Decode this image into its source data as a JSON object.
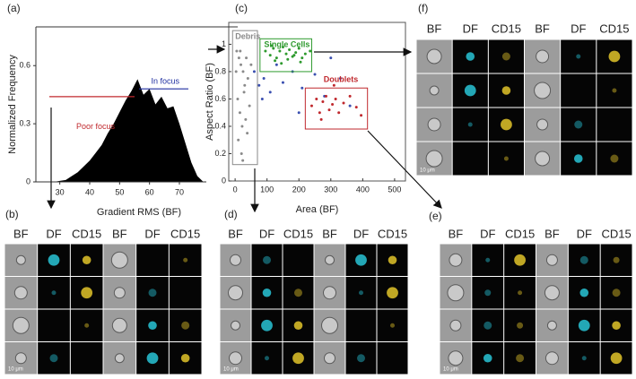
{
  "figure": {
    "labels": [
      "(a)",
      "(b)",
      "(c)",
      "(d)",
      "(e)",
      "(f)"
    ]
  },
  "chart_data": [
    {
      "type": "area",
      "xlabel": "Gradient RMS (BF)",
      "ylabel": "Normalized Frequency",
      "color": "#000000",
      "x": [
        24,
        26,
        28,
        30,
        32,
        34,
        36,
        38,
        40,
        42,
        44,
        46,
        48,
        50,
        52,
        54,
        56,
        58,
        60,
        62,
        64,
        66,
        68,
        70,
        72,
        74,
        76,
        78
      ],
      "values": [
        0,
        0,
        0,
        0.005,
        0.01,
        0.03,
        0.05,
        0.08,
        0.11,
        0.15,
        0.19,
        0.25,
        0.3,
        0.36,
        0.42,
        0.47,
        0.53,
        0.45,
        0.48,
        0.4,
        0.44,
        0.38,
        0.39,
        0.3,
        0.2,
        0.1,
        0.03,
        0
      ],
      "xlim": [
        22,
        79
      ],
      "ylim": [
        0,
        0.8
      ],
      "xticks": [
        30,
        40,
        50,
        60,
        70
      ],
      "yticks": [
        0,
        0.3,
        0.6
      ],
      "annotations": [
        {
          "text": "Poor focus",
          "color": "#c0282d",
          "y": 0.44,
          "x": [
            26.5,
            55
          ]
        },
        {
          "text": "In focus",
          "color": "#1f2fa0",
          "y": 0.48,
          "x": [
            56.5,
            73
          ]
        }
      ]
    },
    {
      "type": "scatter",
      "xlabel": "Area (BF)",
      "ylabel": "Aspect Ratio (BF)",
      "xlim": [
        -20,
        534
      ],
      "ylim": [
        0,
        1.16
      ],
      "xticks": [
        0,
        100,
        200,
        300,
        400,
        500
      ],
      "yticks": [
        0,
        0.2,
        0.4,
        0.6,
        0.8,
        1
      ],
      "series": [
        {
          "color": "#8a8a8a",
          "x": [
            5,
            12,
            18,
            25,
            30,
            8,
            15,
            22,
            35,
            40,
            10,
            20,
            28,
            45,
            3,
            16,
            33,
            50,
            24,
            38
          ],
          "values": [
            0.95,
            0.9,
            0.85,
            0.8,
            0.7,
            0.6,
            0.5,
            0.4,
            0.9,
            0.75,
            0.3,
            0.2,
            0.65,
            0.55,
            0.8,
            0.95,
            0.45,
            0.85,
            0.15,
            0.35
          ]
        },
        {
          "color": "#2e9a2e",
          "x": [
            95,
            110,
            120,
            130,
            140,
            150,
            160,
            170,
            180,
            190,
            200,
            210,
            220,
            235,
            125,
            145,
            165,
            185,
            205,
            115
          ],
          "values": [
            0.95,
            0.92,
            0.97,
            0.9,
            0.95,
            0.98,
            0.93,
            0.96,
            0.91,
            0.94,
            0.97,
            0.9,
            0.93,
            0.95,
            0.88,
            0.86,
            0.89,
            0.92,
            0.87,
            0.99
          ]
        },
        {
          "color": "#3a4fb0",
          "x": [
            60,
            75,
            90,
            110,
            130,
            150,
            180,
            210,
            250,
            280,
            300,
            330,
            360,
            85,
            200
          ],
          "values": [
            0.8,
            0.7,
            0.75,
            0.65,
            0.85,
            0.72,
            0.8,
            0.68,
            0.78,
            0.62,
            0.9,
            0.75,
            0.55,
            0.6,
            0.5
          ]
        },
        {
          "color": "#c0282d",
          "x": [
            240,
            255,
            265,
            275,
            285,
            295,
            305,
            315,
            325,
            340,
            360,
            380,
            395,
            310,
            270
          ],
          "values": [
            0.55,
            0.6,
            0.5,
            0.58,
            0.62,
            0.52,
            0.56,
            0.6,
            0.5,
            0.57,
            0.62,
            0.54,
            0.48,
            0.7,
            0.45
          ]
        }
      ],
      "gates": [
        {
          "label": "Debris",
          "color": "#8a8a8a",
          "x": [
            -8,
            70
          ],
          "y": [
            0.12,
            1.1
          ]
        },
        {
          "label": "Single Cells",
          "color": "#2e9a2e",
          "x": [
            78,
            240
          ],
          "y": [
            0.8,
            1.04
          ]
        },
        {
          "label": "Doublets",
          "color": "#c0282d",
          "x": [
            220,
            415
          ],
          "y": [
            0.38,
            0.68
          ]
        }
      ]
    }
  ],
  "image_grids": [
    {
      "headers": [
        "BF",
        "DF",
        "CD15",
        "BF",
        "DF",
        "CD15"
      ],
      "scale": "10 μm"
    },
    {
      "headers": [
        "BF",
        "DF",
        "CD15",
        "BF",
        "DF",
        "CD15"
      ],
      "scale": "10 μm"
    },
    {
      "headers": [
        "BF",
        "DF",
        "CD15",
        "BF",
        "DF",
        "CD15"
      ],
      "scale": "10 μm"
    },
    {
      "headers": [
        "BF",
        "DF",
        "CD15",
        "BF",
        "DF",
        "CD15"
      ],
      "scale": "10 μm"
    }
  ]
}
